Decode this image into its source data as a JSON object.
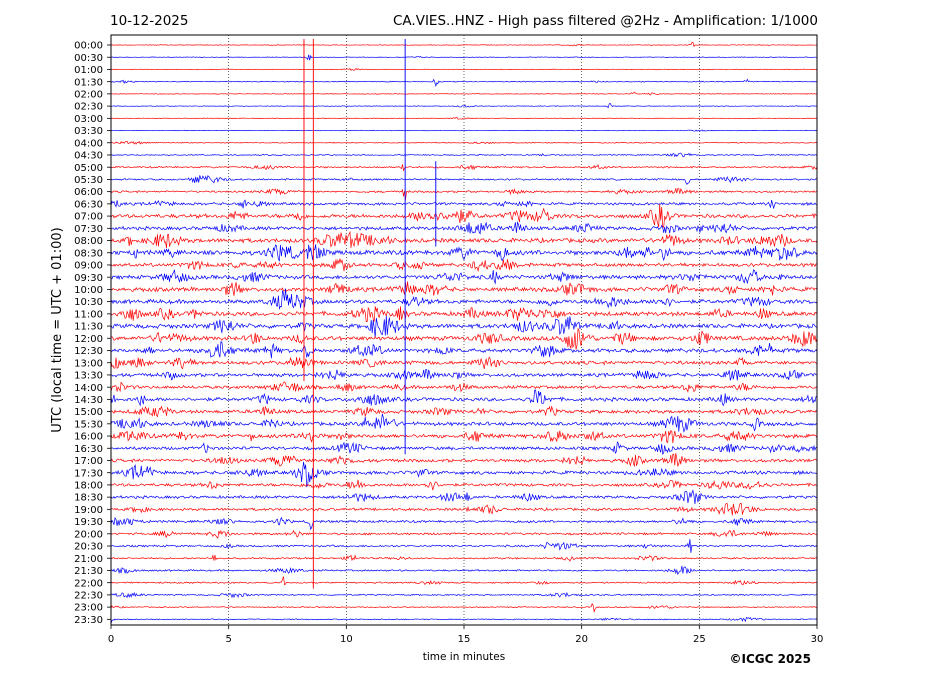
{
  "chart_data": {
    "type": "line",
    "date": "10-12-2025",
    "title": "CA.VIES..HNZ - High pass filtered @2Hz - Amplification: 1/1000",
    "xlabel": "time in minutes",
    "ylabel": "UTC (local time = UTC + 01:00)",
    "xlim": [
      0,
      30
    ],
    "x_ticks": [
      "0",
      "5",
      "10",
      "15",
      "20",
      "25",
      "30"
    ],
    "x_grid": true,
    "row_labels": [
      "00:00",
      "00:30",
      "01:00",
      "01:30",
      "02:00",
      "02:30",
      "03:00",
      "03:30",
      "04:00",
      "04:30",
      "05:00",
      "05:30",
      "06:00",
      "06:30",
      "07:00",
      "07:30",
      "08:00",
      "08:30",
      "09:00",
      "09:30",
      "10:00",
      "10:30",
      "11:00",
      "11:30",
      "12:00",
      "12:30",
      "13:00",
      "13:30",
      "14:00",
      "14:30",
      "15:00",
      "15:30",
      "16:00",
      "16:30",
      "17:00",
      "17:30",
      "18:00",
      "18:30",
      "19:00",
      "19:30",
      "20:00",
      "20:30",
      "21:00",
      "21:30",
      "22:00",
      "22:30",
      "23:00",
      "23:30"
    ],
    "row_colors": [
      "#ff0000",
      "#0000ff"
    ],
    "noise_amplitude": [
      0.3,
      0.3,
      0.3,
      0.4,
      0.3,
      0.3,
      0.3,
      0.3,
      0.4,
      0.5,
      0.8,
      0.8,
      0.9,
      1.2,
      1.8,
      1.6,
      2.0,
      2.2,
      1.6,
      1.8,
      1.9,
      1.9,
      2.0,
      2.1,
      2.0,
      1.9,
      1.7,
      1.6,
      1.5,
      1.7,
      1.6,
      1.7,
      1.8,
      1.5,
      1.5,
      1.6,
      1.4,
      1.3,
      1.2,
      1.1,
      1.0,
      0.9,
      0.8,
      0.8,
      0.7,
      0.6,
      0.5,
      0.5
    ],
    "spikes": [
      {
        "row": 0,
        "x": 24.7,
        "amp": 3
      },
      {
        "row": 1,
        "x": 8.4,
        "amp": 5
      },
      {
        "row": 3,
        "x": 13.8,
        "amp": 6
      },
      {
        "row": 3,
        "x": 27.0,
        "amp": 3
      },
      {
        "row": 4,
        "x": 22.2,
        "amp": 3
      },
      {
        "row": 5,
        "x": 21.2,
        "amp": 3
      },
      {
        "row": 10,
        "x": 12.4,
        "amp": 6
      },
      {
        "row": 11,
        "x": 24.5,
        "amp": 6
      },
      {
        "row": 12,
        "x": 12.5,
        "amp": 10
      },
      {
        "row": 13,
        "x": 28.1,
        "amp": 7
      },
      {
        "row": 17,
        "x": 1.0,
        "amp": 8
      },
      {
        "row": 25,
        "x": 28.0,
        "amp": 8
      },
      {
        "row": 29,
        "x": 0.1,
        "amp": 8
      },
      {
        "row": 31,
        "x": 10.8,
        "amp": 6
      },
      {
        "row": 32,
        "x": 6.0,
        "amp": 7
      },
      {
        "row": 39,
        "x": 8.5,
        "amp": 7
      },
      {
        "row": 41,
        "x": 24.6,
        "amp": 8
      },
      {
        "row": 42,
        "x": 4.4,
        "amp": 6
      },
      {
        "row": 44,
        "x": 7.3,
        "amp": 7
      },
      {
        "row": 46,
        "x": 20.5,
        "amp": 5
      },
      {
        "row": 47,
        "x": 0.0,
        "amp": 6
      }
    ],
    "vertical_glitches": [
      {
        "x": 8.2,
        "from_row": 0,
        "to_row": 27,
        "color": "#ff0000"
      },
      {
        "x": 8.6,
        "from_row": 0,
        "to_row": 44,
        "color": "#ff0000"
      },
      {
        "x": 12.5,
        "from_row": 0,
        "to_row": 33,
        "color": "#0000ff"
      },
      {
        "x": 13.8,
        "from_row": 10,
        "to_row": 16,
        "color": "#0000ff"
      }
    ],
    "copyright": "©ICGC 2025"
  }
}
